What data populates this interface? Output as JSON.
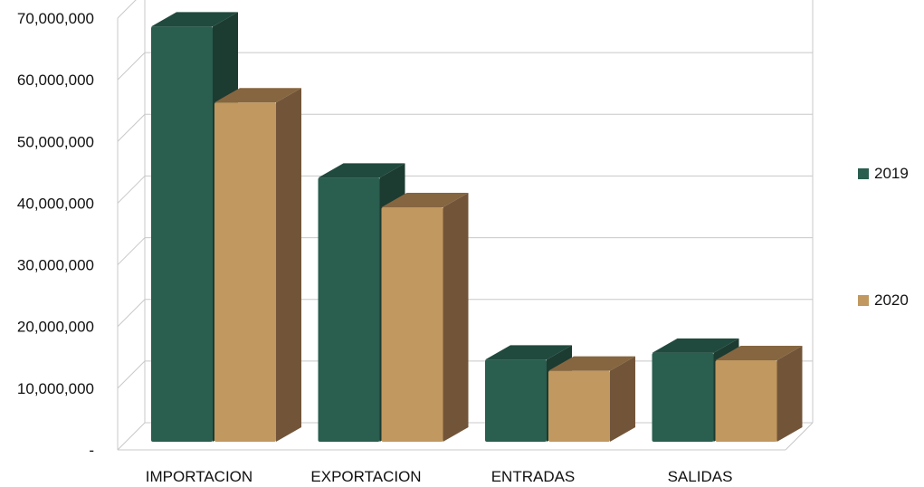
{
  "chart_data": {
    "type": "bar",
    "categories": [
      "IMPORTACION",
      "EXPORTACION",
      "ENTRADAS",
      "SALIDAS"
    ],
    "series": [
      {
        "name": "2019",
        "values": [
          67300000,
          42800000,
          13300000,
          14400000
        ]
      },
      {
        "name": "2020",
        "values": [
          55000000,
          38000000,
          11500000,
          13200000
        ]
      }
    ],
    "ylim": [
      0,
      70000000
    ],
    "yticks": [
      0,
      10000000,
      20000000,
      30000000,
      40000000,
      50000000,
      60000000,
      70000000
    ],
    "ytick_labels": [
      "-",
      "10,000,000",
      "20,000,000",
      "30,000,000",
      "40,000,000",
      "50,000,000",
      "60,000,000",
      "70,000,000"
    ],
    "grid": true,
    "legend_position": "right",
    "colors": {
      "series_2019": {
        "front": "#2a5e4f",
        "side": "#1c3b31",
        "top": "#214a3e"
      },
      "series_2020": {
        "front": "#c09860",
        "side": "#725539",
        "top": "#866640"
      },
      "grid": "#c8c8c8"
    }
  }
}
